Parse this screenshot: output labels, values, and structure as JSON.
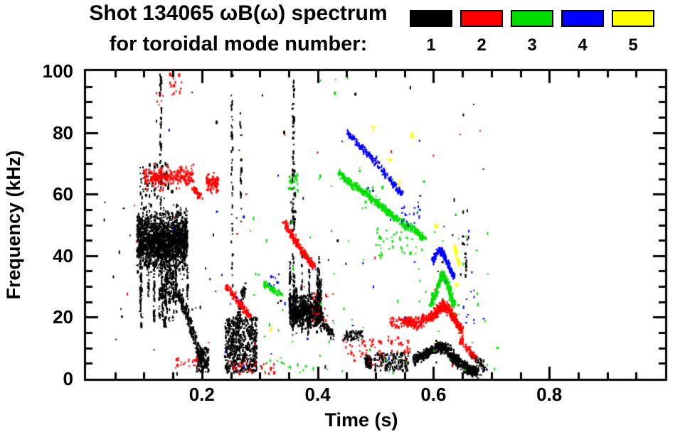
{
  "header": {
    "title_line1": "Shot 134065 ωB(ω) spectrum",
    "title_line2": "for toroidal mode number:"
  },
  "legend": {
    "items": [
      {
        "label": "1",
        "color": "#000000"
      },
      {
        "label": "2",
        "color": "#FF0000"
      },
      {
        "label": "3",
        "color": "#00DE00"
      },
      {
        "label": "4",
        "color": "#0000FF"
      },
      {
        "label": "5",
        "color": "#FFFF00"
      }
    ]
  },
  "axes": {
    "xlabel": "Time (s)",
    "ylabel": "Frequency (kHz)",
    "frame_color": "#000000",
    "background": "#FFFFFF"
  },
  "chart_data": {
    "type": "scatter",
    "title": "Shot 134065 ωB(ω) spectrum",
    "subtitle": "for toroidal mode number:",
    "xlabel": "Time (s)",
    "ylabel": "Frequency (kHz)",
    "xlim": [
      0,
      1.0
    ],
    "ylim": [
      0,
      100
    ],
    "xticks_major": [
      0.2,
      0.4,
      0.6,
      0.8
    ],
    "xtick_labels": [
      "0.2",
      "0.4",
      "0.6",
      "0.8"
    ],
    "xtick_minor_step": 0.05,
    "yticks_major": [
      0,
      20,
      40,
      60,
      80,
      100
    ],
    "ytick_labels": [
      "0",
      "20",
      "40",
      "60",
      "80",
      "100"
    ],
    "ytick_minor_step": 5,
    "grid": false,
    "legend_position": "top-right",
    "series": [
      {
        "name": "1",
        "mode": 1,
        "color": "#000000",
        "clusters": [
          {
            "type": "box",
            "t": [
              0.088,
              0.175
            ],
            "f": [
              30,
              60
            ],
            "n": 1700,
            "gauss": true
          },
          {
            "type": "box",
            "t": [
              0.093,
              0.15
            ],
            "f": [
              58,
              71
            ],
            "n": 70
          },
          {
            "type": "vlines",
            "t": [
              0.092,
              0.178
            ],
            "lines": 26,
            "fb": [
              16,
              26
            ],
            "ft": [
              30,
              44
            ],
            "n": 14
          },
          {
            "type": "path",
            "pts": [
              [
                0.155,
                29
              ],
              [
                0.175,
                21
              ],
              [
                0.19,
                12
              ],
              [
                0.203,
                4.5
              ]
            ],
            "jt": 0.004,
            "jf": 2.6,
            "n": 230
          },
          {
            "type": "box",
            "t": [
              0.19,
              0.212
            ],
            "f": [
              2,
              10
            ],
            "n": 120
          },
          {
            "type": "vline",
            "t": 0.129,
            "f": [
              50,
              99
            ],
            "n": 42,
            "jt": 0.0015
          },
          {
            "type": "vline",
            "t": 0.252,
            "f": [
              28,
              99
            ],
            "n": 44,
            "jt": 0.0015
          },
          {
            "type": "vline",
            "t": 0.267,
            "f": [
              50,
              88
            ],
            "n": 16,
            "jt": 0.0015
          },
          {
            "type": "box",
            "t": [
              0.24,
              0.295
            ],
            "f": [
              2,
              20
            ],
            "n": 520
          },
          {
            "type": "path",
            "pts": [
              [
                0.25,
                8
              ],
              [
                0.26,
                16
              ],
              [
                0.268,
                25
              ],
              [
                0.274,
                31
              ]
            ],
            "jt": 0.003,
            "jf": 2.5,
            "n": 90
          },
          {
            "type": "vline",
            "t": 0.358,
            "f": [
              47,
              97
            ],
            "n": 40,
            "jt": 0.0015
          },
          {
            "type": "box",
            "t": [
              0.353,
              0.363
            ],
            "f": [
              48,
              68
            ],
            "n": 30
          },
          {
            "type": "vlines",
            "t": [
              0.352,
              0.408
            ],
            "lines": 13,
            "fb": [
              13,
              20
            ],
            "ft": [
              28,
              42
            ],
            "n": 22
          },
          {
            "type": "box",
            "t": [
              0.352,
              0.405
            ],
            "f": [
              13,
              30
            ],
            "n": 620,
            "gauss": true
          },
          {
            "type": "path",
            "pts": [
              [
                0.398,
                23
              ],
              [
                0.412,
                18
              ],
              [
                0.425,
                14
              ]
            ],
            "jt": 0.004,
            "jf": 2.2,
            "n": 90
          },
          {
            "type": "box",
            "t": [
              0.443,
              0.478
            ],
            "f": [
              12.5,
              15.5
            ],
            "n": 55
          },
          {
            "type": "gauss",
            "c": [
              0.488,
              5.5
            ],
            "s": [
              0.007,
              2.3
            ],
            "n": 300
          },
          {
            "type": "box",
            "t": [
              0.498,
              0.558
            ],
            "f": [
              2.5,
              8.5
            ],
            "n": 150
          },
          {
            "type": "path",
            "pts": [
              [
                0.565,
                6
              ],
              [
                0.585,
                8
              ],
              [
                0.605,
                10
              ],
              [
                0.618,
                10.5
              ],
              [
                0.632,
                7.5
              ],
              [
                0.648,
                4.5
              ],
              [
                0.663,
                3
              ],
              [
                0.678,
                2.5
              ]
            ],
            "jt": 0.004,
            "jf": 2.7,
            "n": 620
          },
          {
            "type": "vline",
            "t": 0.656,
            "f": [
              33,
              41
            ],
            "n": 13,
            "jt": 0.001
          },
          {
            "type": "box",
            "t": [
              0.648,
              0.662
            ],
            "f": [
              42,
              47
            ],
            "n": 7
          },
          {
            "type": "box",
            "t": [
              0.02,
              0.7
            ],
            "f": [
              1,
              97
            ],
            "n": 55
          },
          {
            "type": "path",
            "pts": [
              [
                0.665,
                9
              ],
              [
                0.69,
                3
              ]
            ],
            "jt": 0.004,
            "jf": 2.0,
            "n": 45
          }
        ]
      },
      {
        "name": "2",
        "mode": 2,
        "color": "#FF0000",
        "clusters": [
          {
            "type": "box",
            "t": [
              0.1,
              0.186
            ],
            "f": [
              60,
              71
            ],
            "n": 240,
            "gauss": true
          },
          {
            "type": "path",
            "pts": [
              [
                0.185,
                62
              ],
              [
                0.2,
                58.5
              ]
            ],
            "jt": 0.003,
            "jf": 1.6,
            "n": 40
          },
          {
            "type": "box",
            "t": [
              0.208,
              0.228
            ],
            "f": [
              59,
              68
            ],
            "n": 90,
            "gauss": true
          },
          {
            "type": "box",
            "t": [
              0.143,
              0.168
            ],
            "f": [
              92,
              99
            ],
            "n": 16
          },
          {
            "type": "box",
            "t": [
              0.12,
              0.134
            ],
            "f": [
              89,
              93
            ],
            "n": 6
          },
          {
            "type": "path",
            "pts": [
              [
                0.243,
                30
              ],
              [
                0.257,
                26.5
              ],
              [
                0.27,
                23.5
              ],
              [
                0.283,
                20.5
              ]
            ],
            "jt": 0.003,
            "jf": 1.8,
            "n": 130
          },
          {
            "type": "path",
            "pts": [
              [
                0.341,
                51
              ],
              [
                0.356,
                46.5
              ],
              [
                0.37,
                42.5
              ],
              [
                0.383,
                39
              ],
              [
                0.393,
                36.5
              ]
            ],
            "jt": 0.003,
            "jf": 1.7,
            "n": 210
          },
          {
            "type": "box",
            "t": [
              0.15,
              0.195
            ],
            "f": [
              3.5,
              6.5
            ],
            "n": 22
          },
          {
            "type": "box",
            "t": [
              0.24,
              0.325
            ],
            "f": [
              1.5,
              6
            ],
            "n": 32
          },
          {
            "type": "box",
            "t": [
              0.385,
              0.432
            ],
            "f": [
              18,
              28
            ],
            "n": 18
          },
          {
            "type": "box",
            "t": [
              0.442,
              0.515
            ],
            "f": [
              4,
              13
            ],
            "n": 42
          },
          {
            "type": "box",
            "t": [
              0.52,
              0.562
            ],
            "f": [
              8,
              14
            ],
            "n": 22
          },
          {
            "type": "path",
            "pts": [
              [
                0.548,
                18.5
              ],
              [
                0.568,
                18
              ],
              [
                0.588,
                19.5
              ],
              [
                0.605,
                21.5
              ],
              [
                0.617,
                24
              ],
              [
                0.63,
                21.5
              ],
              [
                0.641,
                18
              ],
              [
                0.65,
                15.5
              ]
            ],
            "jt": 0.003,
            "jf": 2.5,
            "n": 500
          },
          {
            "type": "box",
            "t": [
              0.524,
              0.552
            ],
            "f": [
              16.5,
              20
            ],
            "n": 28
          },
          {
            "type": "path",
            "pts": [
              [
                0.646,
                13
              ],
              [
                0.66,
                9.5
              ],
              [
                0.673,
                7
              ]
            ],
            "jt": 0.003,
            "jf": 2.0,
            "n": 55
          },
          {
            "type": "box",
            "t": [
              0.05,
              0.72
            ],
            "f": [
              2,
              92
            ],
            "n": 24
          }
        ]
      },
      {
        "name": "3",
        "mode": 3,
        "color": "#00DE00",
        "clusters": [
          {
            "type": "path",
            "pts": [
              [
                0.437,
                67
              ],
              [
                0.457,
                63.5
              ],
              [
                0.478,
                61
              ],
              [
                0.5,
                57.5
              ],
              [
                0.522,
                54
              ],
              [
                0.543,
                51
              ],
              [
                0.565,
                48.5
              ],
              [
                0.585,
                45.5
              ]
            ],
            "jt": 0.003,
            "jf": 1.8,
            "n": 430
          },
          {
            "type": "box",
            "t": [
              0.35,
              0.366
            ],
            "f": [
              61,
              67
            ],
            "n": 22
          },
          {
            "type": "path",
            "pts": [
              [
                0.595,
                24
              ],
              [
                0.604,
                28
              ],
              [
                0.612,
                32.5
              ],
              [
                0.617,
                34
              ],
              [
                0.624,
                31
              ],
              [
                0.63,
                27
              ],
              [
                0.636,
                24
              ]
            ],
            "jt": 0.0025,
            "jf": 2.2,
            "n": 290
          },
          {
            "type": "path",
            "pts": [
              [
                0.308,
                31
              ],
              [
                0.323,
                29
              ],
              [
                0.338,
                27
              ]
            ],
            "jt": 0.003,
            "jf": 1.4,
            "n": 65
          },
          {
            "type": "box",
            "t": [
              0.5,
              0.582
            ],
            "f": [
              40,
              50
            ],
            "n": 40
          },
          {
            "type": "box",
            "t": [
              0.28,
              0.72
            ],
            "f": [
              2,
              55
            ],
            "n": 65
          },
          {
            "type": "box",
            "t": [
              0.4,
              0.6
            ],
            "f": [
              55,
              70
            ],
            "n": 12
          },
          {
            "type": "box",
            "t": [
              0.4,
              0.47
            ],
            "f": [
              90,
              98
            ],
            "n": 4
          },
          {
            "type": "box",
            "t": [
              0.3,
              0.56
            ],
            "f": [
              1,
              7
            ],
            "n": 20
          }
        ]
      },
      {
        "name": "4",
        "mode": 4,
        "color": "#0000FF",
        "clusters": [
          {
            "type": "path",
            "pts": [
              [
                0.452,
                80
              ],
              [
                0.472,
                76
              ],
              [
                0.492,
                72
              ],
              [
                0.512,
                67.5
              ],
              [
                0.53,
                63.5
              ],
              [
                0.546,
                60
              ]
            ],
            "jt": 0.003,
            "jf": 1.6,
            "n": 170
          },
          {
            "type": "path",
            "pts": [
              [
                0.598,
                38
              ],
              [
                0.606,
                41
              ],
              [
                0.613,
                42
              ],
              [
                0.621,
                39
              ],
              [
                0.629,
                35.5
              ],
              [
                0.636,
                33
              ]
            ],
            "jt": 0.0025,
            "jf": 1.6,
            "n": 150
          },
          {
            "type": "box",
            "t": [
              0.545,
              0.578
            ],
            "f": [
              49,
              56
            ],
            "n": 18
          },
          {
            "type": "box",
            "t": [
              0.315,
              0.338
            ],
            "f": [
              30,
              34
            ],
            "n": 10
          },
          {
            "type": "box",
            "t": [
              0.12,
              0.7
            ],
            "f": [
              2,
              84
            ],
            "n": 38
          },
          {
            "type": "box",
            "t": [
              0.65,
              0.672
            ],
            "f": [
              18,
              29
            ],
            "n": 10
          }
        ]
      },
      {
        "name": "5",
        "mode": 5,
        "color": "#FFFF00",
        "clusters": [
          {
            "type": "path",
            "pts": [
              [
                0.637,
                42.5
              ],
              [
                0.641,
                39.5
              ],
              [
                0.645,
                37
              ]
            ],
            "jt": 0.002,
            "jf": 1.6,
            "n": 40
          },
          {
            "type": "pts",
            "pts": [
              [
                0.32,
                16
              ],
              [
                0.496,
                82
              ],
              [
                0.524,
                71
              ],
              [
                0.541,
                64
              ],
              [
                0.563,
                79
              ],
              [
                0.604,
                50
              ],
              [
                0.641,
                31
              ]
            ],
            "jt": 0.003,
            "jf": 1.5,
            "n": 4
          }
        ]
      }
    ]
  }
}
